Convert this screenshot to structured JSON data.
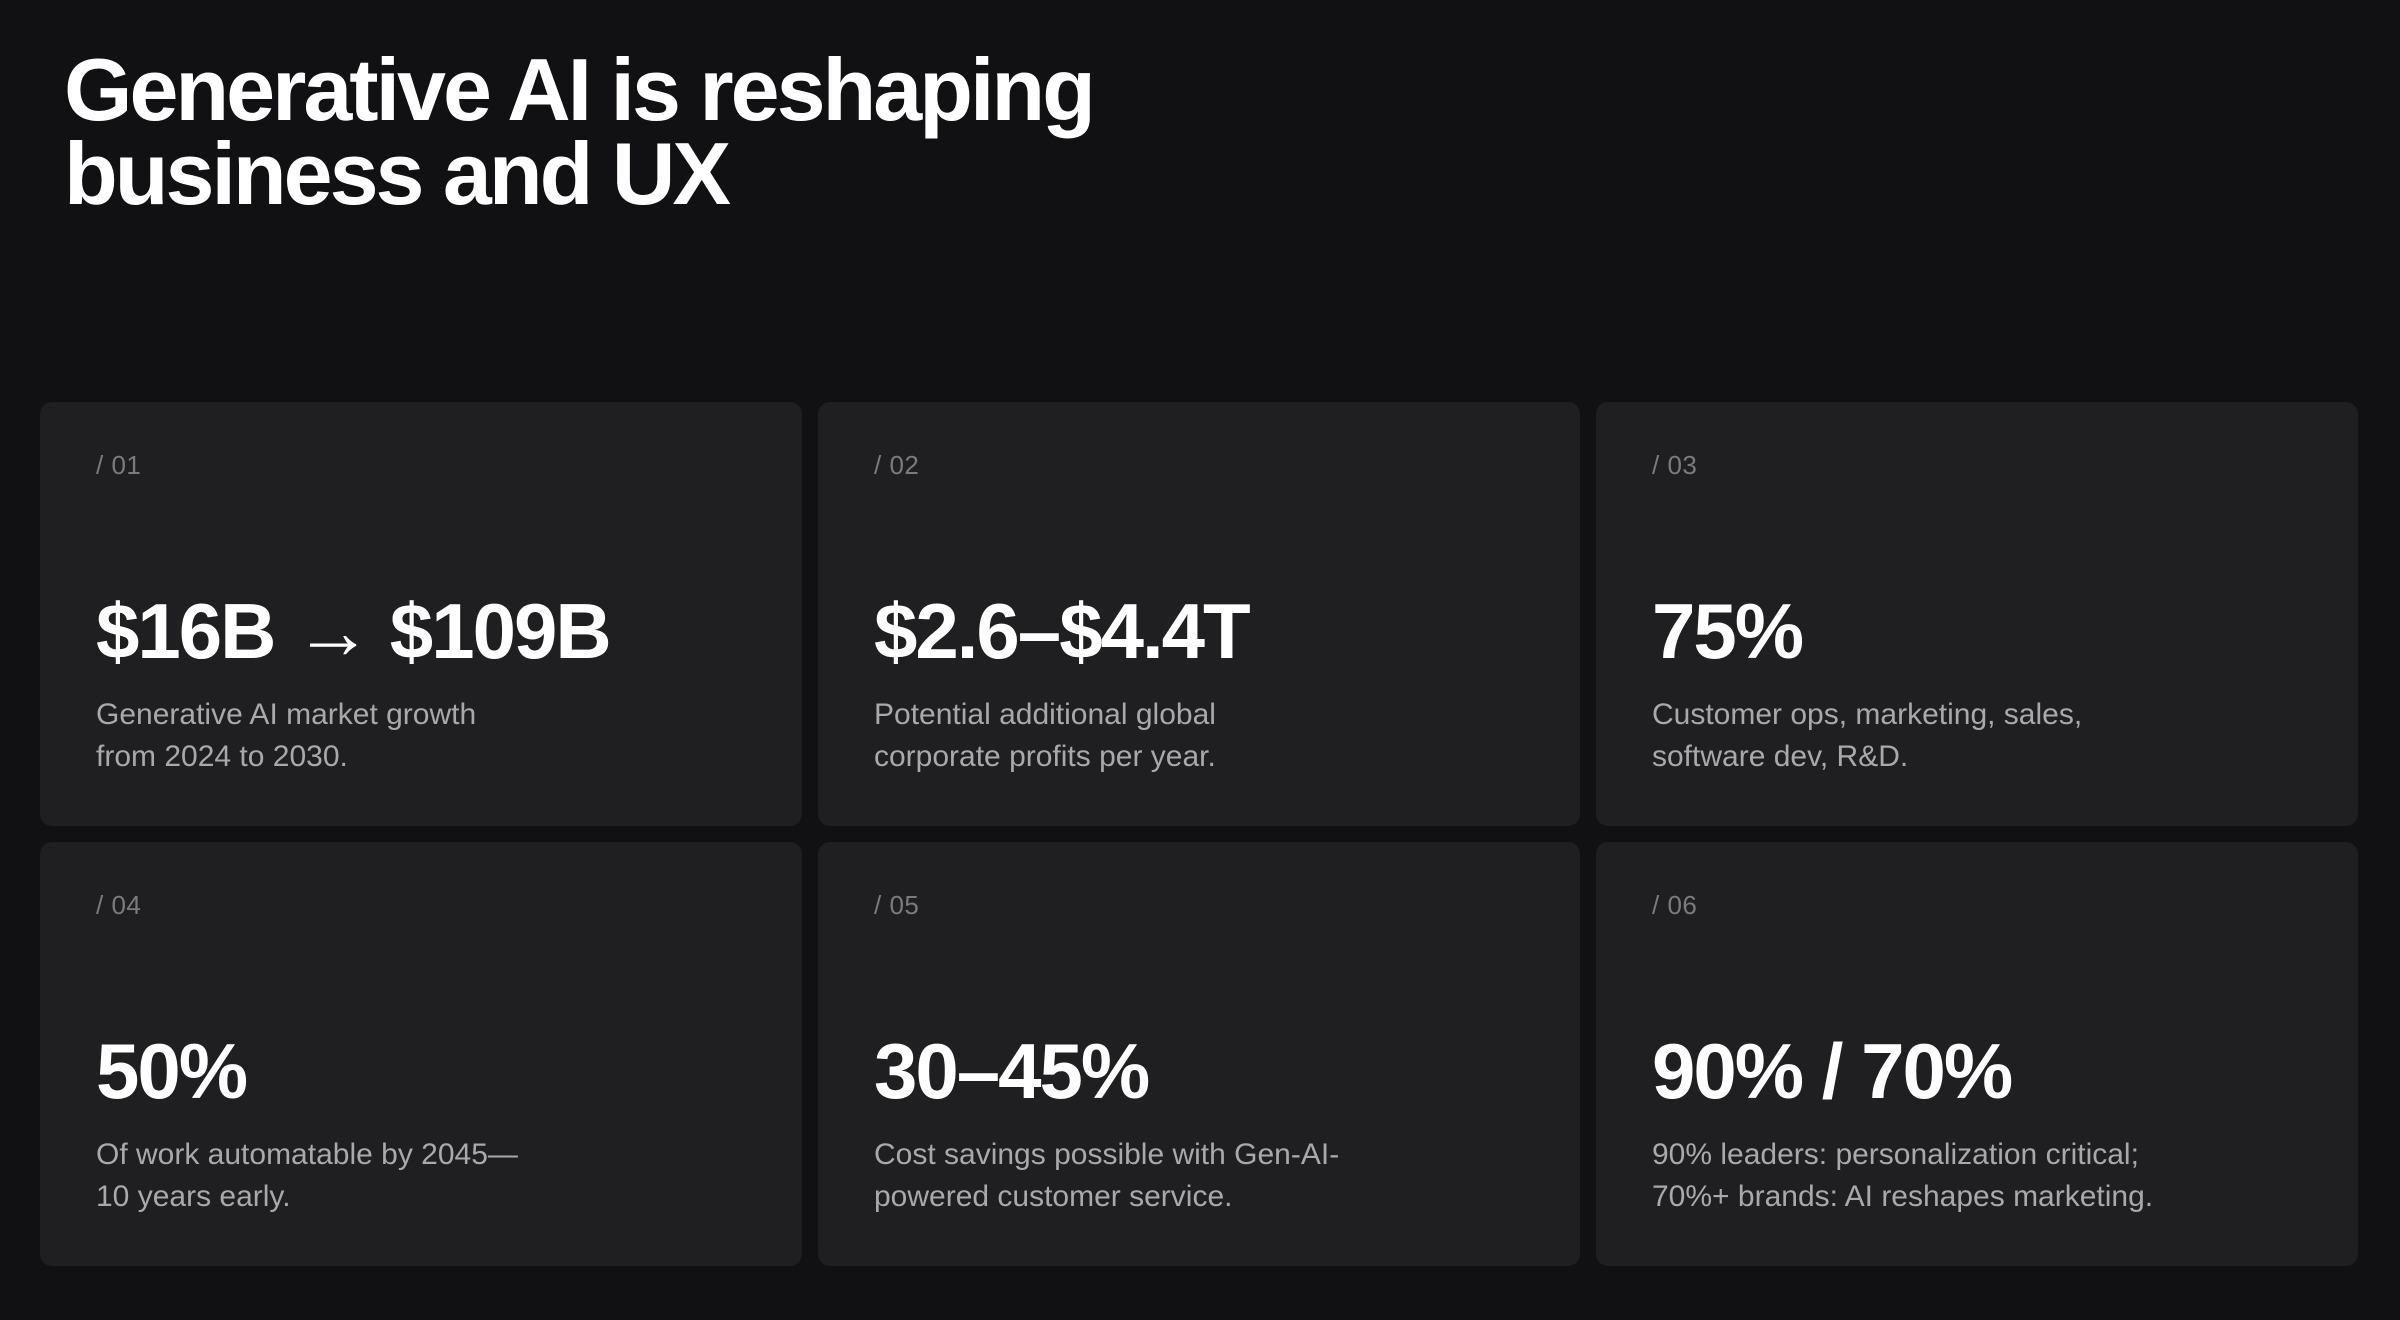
{
  "title": {
    "line1": "Generative AI is reshaping",
    "line2": "business and UX"
  },
  "cards": [
    {
      "index": "/ 01",
      "value": "$16B → $109B",
      "desc_line1": "Generative AI market growth",
      "desc_line2": "from 2024 to 2030."
    },
    {
      "index": "/ 02",
      "value": "$2.6–$4.4T",
      "desc_line1": "Potential additional global",
      "desc_line2": "corporate profits per year."
    },
    {
      "index": "/ 03",
      "value": "75%",
      "desc_line1": "Customer ops, marketing, sales,",
      "desc_line2": "software dev, R&D."
    },
    {
      "index": "/ 04",
      "value": "50%",
      "desc_line1": "Of work automatable by 2045—",
      "desc_line2": "10 years early."
    },
    {
      "index": "/ 05",
      "value": "30–45%",
      "desc_line1": "Cost savings possible with Gen-AI-",
      "desc_line2": "powered customer service."
    },
    {
      "index": "/ 06",
      "value": "90% / 70%",
      "desc_line1": "90% leaders: personalization critical;",
      "desc_line2": "70%+ brands: AI reshapes marketing."
    }
  ]
}
